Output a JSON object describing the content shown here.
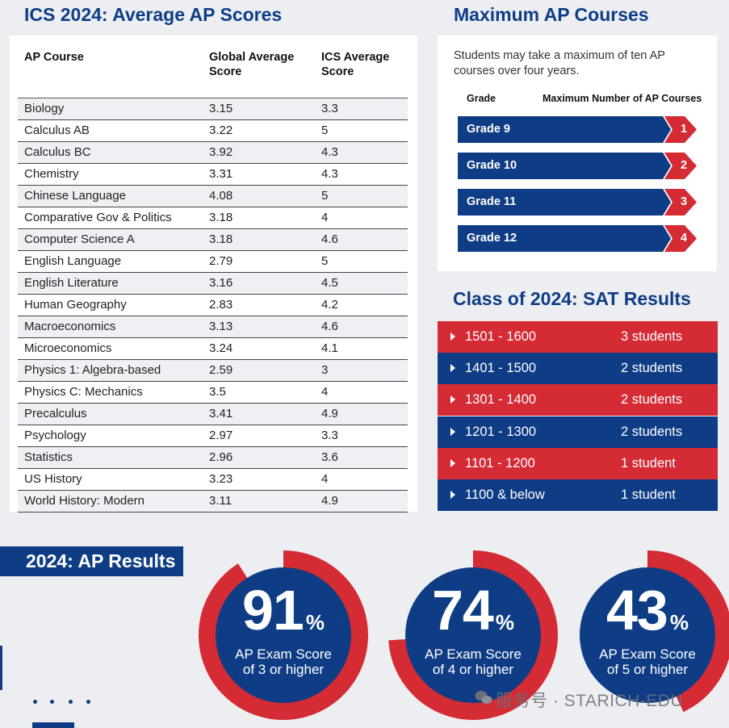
{
  "ap_scores": {
    "title": "ICS 2024: Average AP Scores",
    "headers": [
      "AP Course",
      "Global Average Score",
      "ICS Average Score"
    ],
    "rows": [
      [
        "Biology",
        "3.15",
        "3.3"
      ],
      [
        "Calculus AB",
        "3.22",
        "5"
      ],
      [
        "Calculus BC",
        "3.92",
        "4.3"
      ],
      [
        "Chemistry",
        "3.31",
        "4.3"
      ],
      [
        "Chinese Language",
        "4.08",
        "5"
      ],
      [
        "Comparative Gov & Politics",
        "3.18",
        "4"
      ],
      [
        "Computer Science A",
        "3.18",
        "4.6"
      ],
      [
        "English Language",
        "2.79",
        "5"
      ],
      [
        "English Literature",
        "3.16",
        "4.5"
      ],
      [
        "Human Geography",
        "2.83",
        "4.2"
      ],
      [
        "Macroeconomics",
        "3.13",
        "4.6"
      ],
      [
        "Microeconomics",
        "3.24",
        "4.1"
      ],
      [
        "Physics 1: Algebra-based",
        "2.59",
        "3"
      ],
      [
        "Physics C: Mechanics",
        "3.5",
        "4"
      ],
      [
        "Precalculus",
        "3.41",
        "4.9"
      ],
      [
        "Psychology",
        "2.97",
        "3.3"
      ],
      [
        "Statistics",
        "2.96",
        "3.6"
      ],
      [
        "US History",
        "3.23",
        "4"
      ],
      [
        "World History: Modern",
        "3.11",
        "4.9"
      ]
    ]
  },
  "max_ap": {
    "title": "Maximum AP Courses",
    "description": "Students may take a maximum of ten AP courses over four years.",
    "header_grade": "Grade",
    "header_max": "Maximum Number of AP Courses",
    "grades": [
      {
        "label": "Grade 9",
        "max": "1"
      },
      {
        "label": "Grade 10",
        "max": "2"
      },
      {
        "label": "Grade 11",
        "max": "3"
      },
      {
        "label": "Grade 12",
        "max": "4"
      }
    ]
  },
  "sat": {
    "title": "Class of 2024: SAT Results",
    "rows": [
      {
        "range": "1501 - 1600",
        "count": "3 students"
      },
      {
        "range": "1401 - 1500",
        "count": "2 students"
      },
      {
        "range": "1301 - 1400",
        "count": "2 students"
      },
      {
        "range": "1201 - 1300",
        "count": "2 students"
      },
      {
        "range": "1101 - 1200",
        "count": "1 student"
      },
      {
        "range": "1100 & below",
        "count": "1 student"
      }
    ]
  },
  "ap_results": {
    "title": "2024: AP Results",
    "items": [
      {
        "value": "91",
        "unit": "%",
        "desc": "AP Exam Score of 3 or higher",
        "fraction": 0.91
      },
      {
        "value": "74",
        "unit": "%",
        "desc": "AP Exam Score of 4 or higher",
        "fraction": 0.74
      },
      {
        "value": "43",
        "unit": "%",
        "desc": "AP Exam Score of 5 or higher",
        "fraction": 0.43
      }
    ]
  },
  "watermark": "服务号 · STARICH-EDU",
  "colors": {
    "navy": "#0f3d85",
    "red": "#d42b35",
    "background": "#eceef2"
  }
}
